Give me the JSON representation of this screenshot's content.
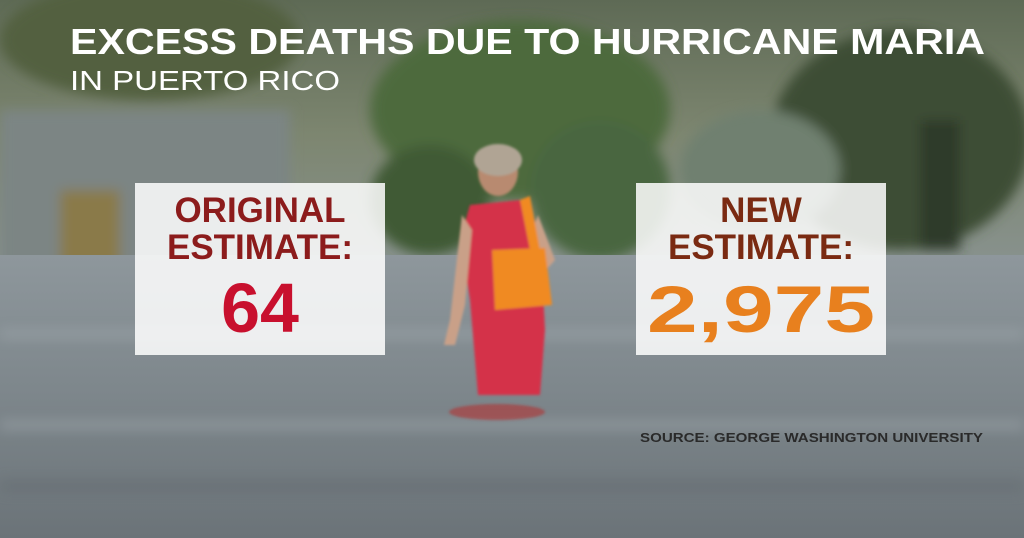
{
  "header": {
    "title": "EXCESS DEATHS DUE TO HURRICANE MARIA",
    "subtitle": "IN PUERTO RICO"
  },
  "cards": [
    {
      "label_lines": [
        "ORIGINAL",
        "ESTIMATE:"
      ],
      "value": "64"
    },
    {
      "label_lines": [
        "NEW",
        "ESTIMATE:"
      ],
      "value": "2,975"
    }
  ],
  "source": "SOURCE: GEORGE WASHINGTON UNIVERSITY"
}
